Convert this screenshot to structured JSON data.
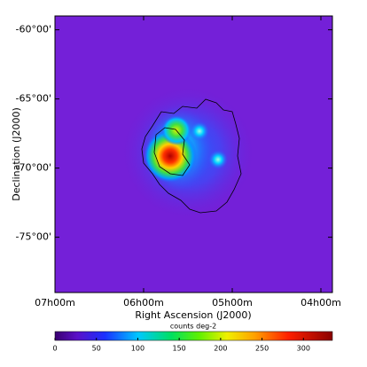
{
  "chart_data": {
    "type": "heatmap",
    "xlabel": "Right Ascension (J2000)",
    "ylabel": "Declination (J2000)",
    "xlim": [
      7,
      3.87
    ],
    "xticks": [
      {
        "value": 7,
        "label": "07h00m"
      },
      {
        "value": 6,
        "label": "06h00m"
      },
      {
        "value": 5,
        "label": "05h00m"
      },
      {
        "value": 4,
        "label": "04h00m"
      }
    ],
    "ylim": [
      -79,
      -59
    ],
    "yticks": [
      {
        "value": -60,
        "label": "-60°00'"
      },
      {
        "value": -65,
        "label": "-65°00'"
      },
      {
        "value": -70,
        "label": "-70°00'"
      },
      {
        "value": -75,
        "label": "-75°00'"
      }
    ],
    "colorbar": {
      "label": "counts deg-2",
      "lim": [
        0,
        335
      ],
      "ticks": [
        0,
        50,
        100,
        150,
        200,
        250,
        300
      ]
    }
  }
}
